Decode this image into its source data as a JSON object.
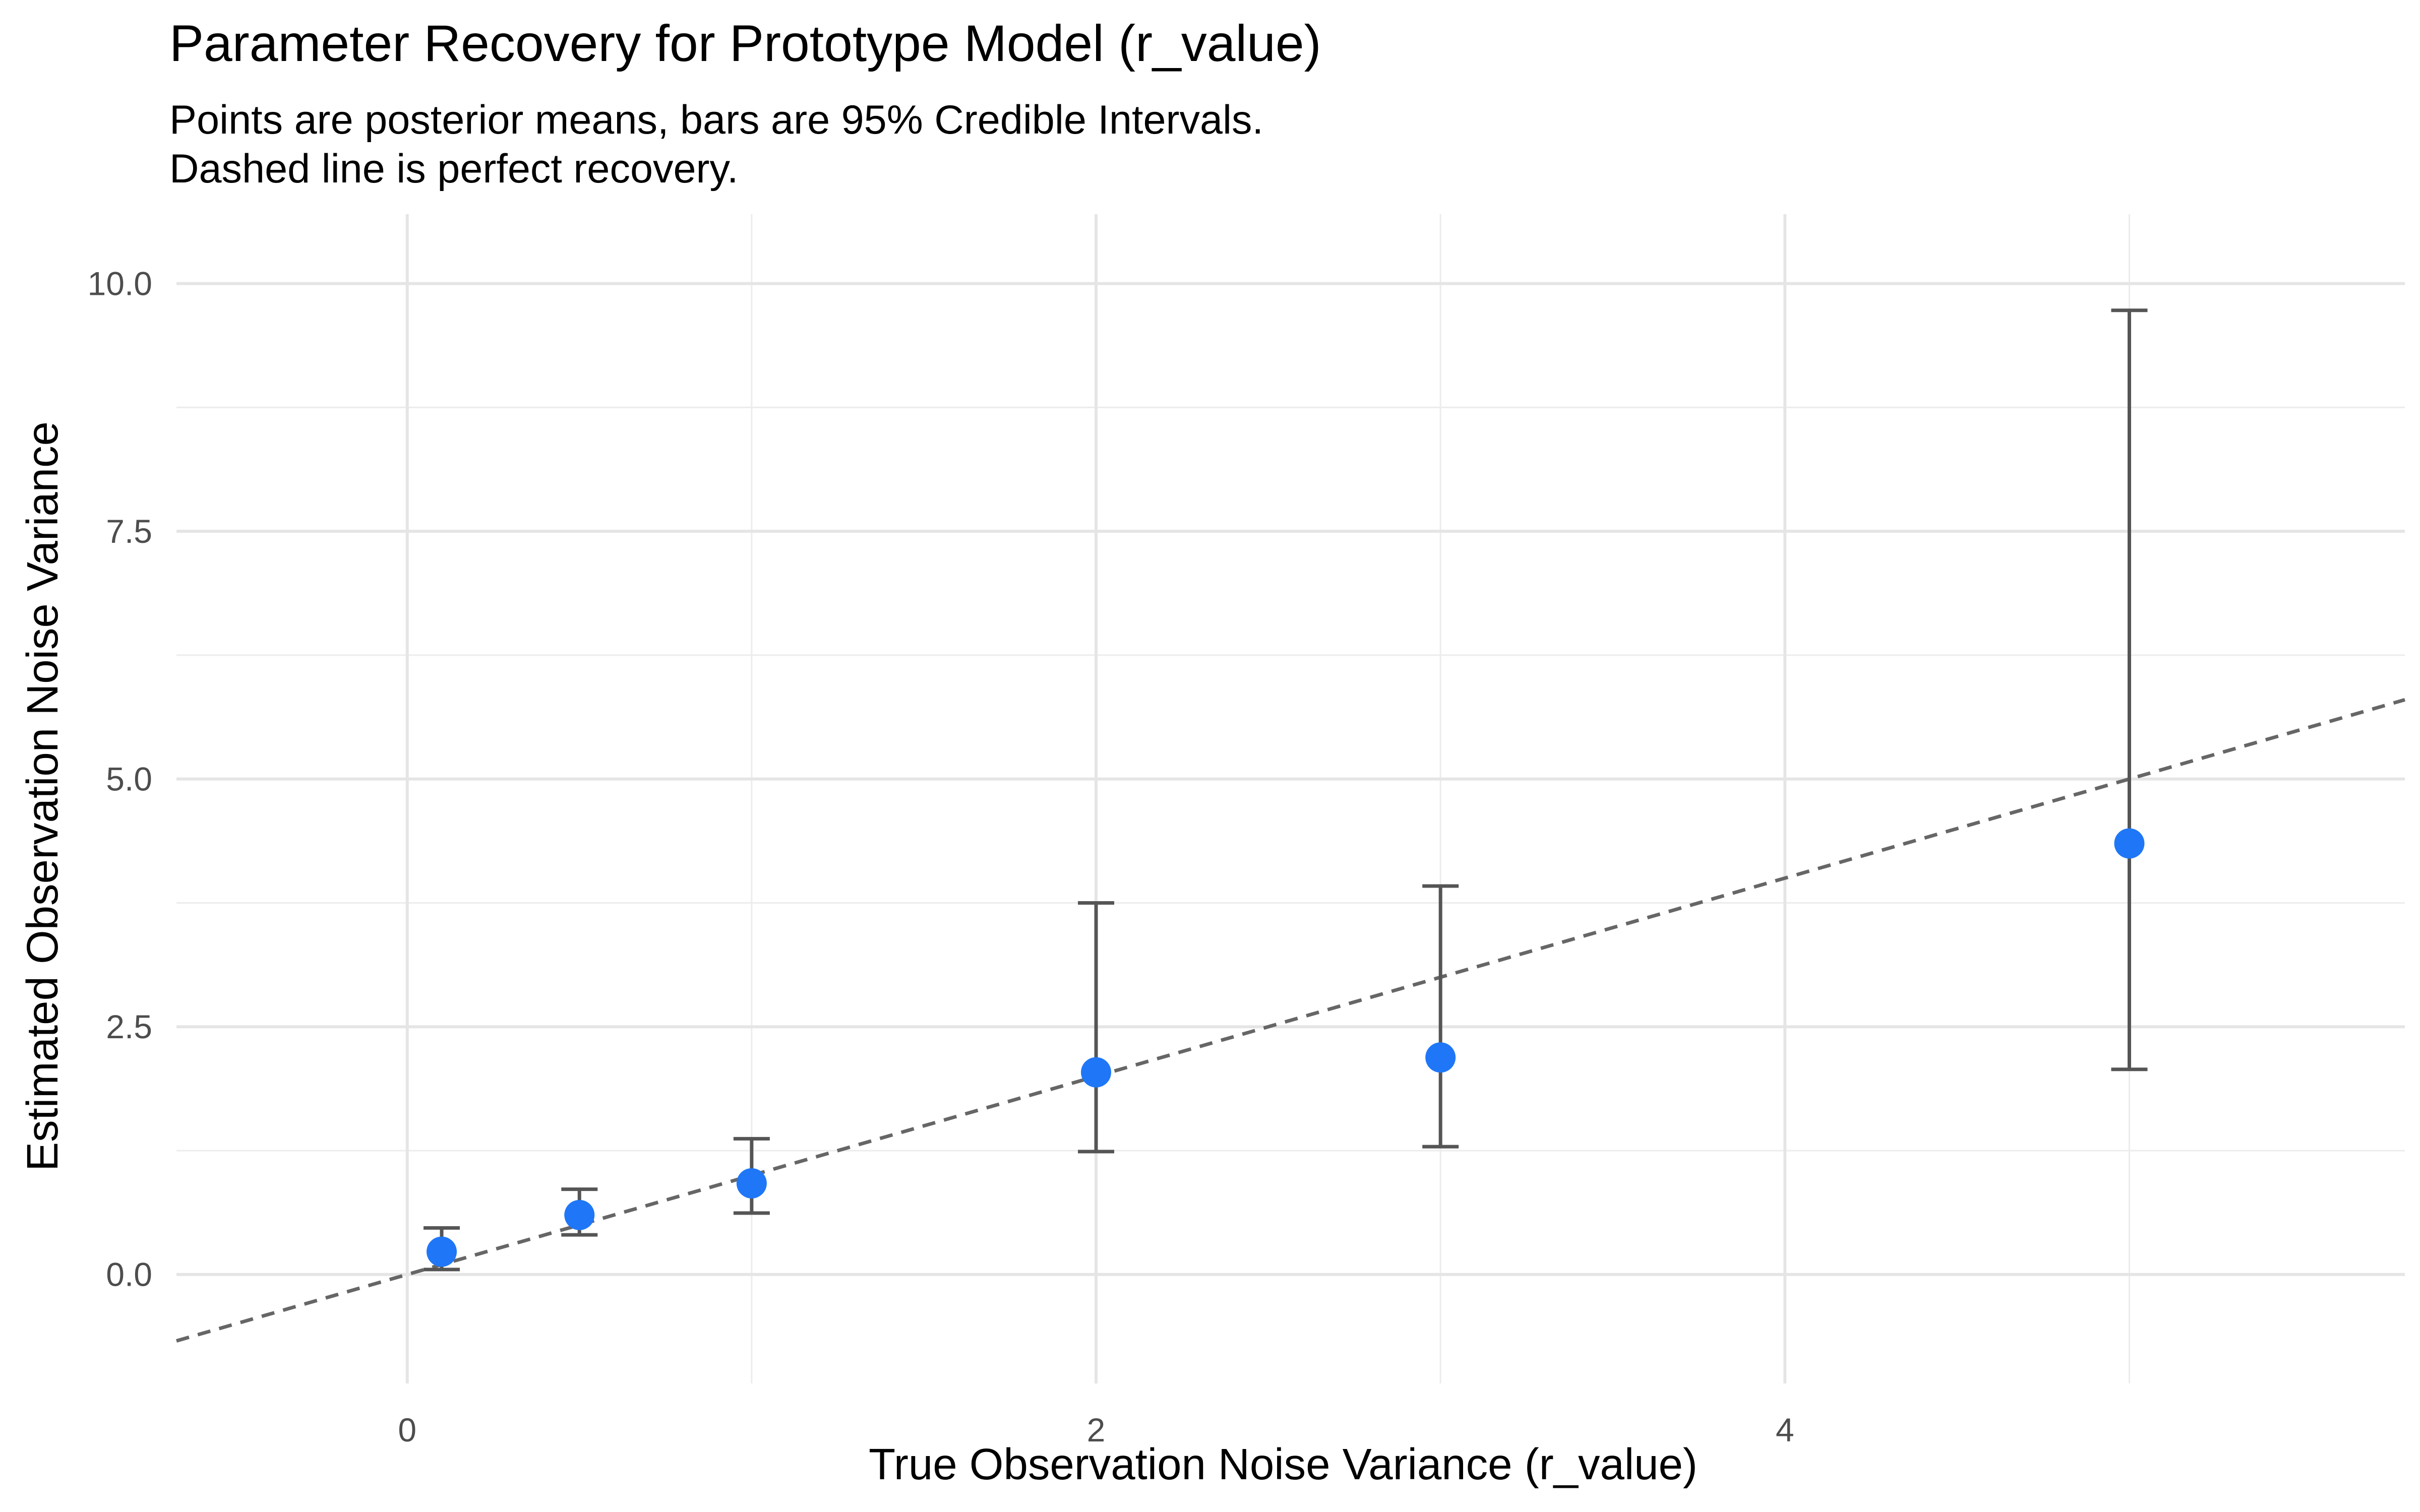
{
  "chart_data": {
    "type": "scatter",
    "title": "Parameter Recovery for Prototype Model (r_value)",
    "subtitle_lines": [
      "Points are posterior means, bars are 95% Credible Intervals.",
      "Dashed line is perfect recovery."
    ],
    "xlabel": "True Observation Noise Variance (r_value)",
    "ylabel": "Estimated Observation Noise Variance",
    "xlim": [
      -0.67,
      5.8
    ],
    "ylim": [
      -1.1,
      10.7
    ],
    "x_ticks": [
      0,
      2,
      4
    ],
    "x_tick_labels": [
      "0",
      "2",
      "4"
    ],
    "y_ticks": [
      0,
      2.5,
      5,
      7.5,
      10
    ],
    "y_tick_labels": [
      "0.0",
      "2.5",
      "5.0",
      "7.5",
      "10.0"
    ],
    "grid": true,
    "reference_line": {
      "style": "dashed",
      "slope": 1,
      "intercept": 0,
      "color": "#666666"
    },
    "point_color": "#1f77f7",
    "errorbar_color": "#555555",
    "points": [
      {
        "x": 0.1,
        "y": 0.23,
        "lower": 0.05,
        "upper": 0.47
      },
      {
        "x": 0.5,
        "y": 0.6,
        "lower": 0.4,
        "upper": 0.86
      },
      {
        "x": 1.0,
        "y": 0.92,
        "lower": 0.62,
        "upper": 1.37
      },
      {
        "x": 2.0,
        "y": 2.04,
        "lower": 1.24,
        "upper": 3.75
      },
      {
        "x": 3.0,
        "y": 2.19,
        "lower": 1.29,
        "upper": 3.92
      },
      {
        "x": 5.0,
        "y": 4.35,
        "lower": 2.07,
        "upper": 9.73
      }
    ]
  }
}
